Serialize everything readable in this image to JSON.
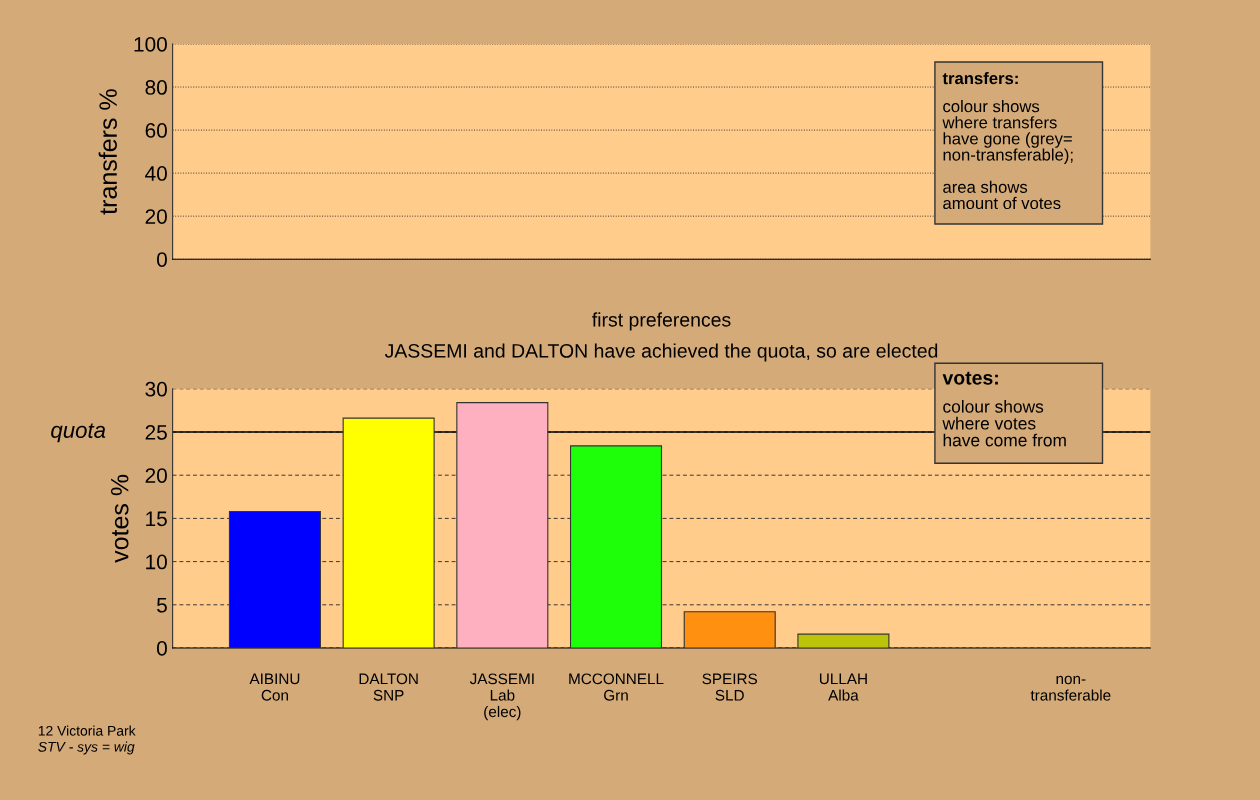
{
  "chart_data": [
    {
      "type": "bar",
      "ylabel": "transfers %",
      "values": [
        null,
        null,
        null,
        null,
        null,
        null,
        null,
        null
      ],
      "ylim": [
        0,
        100
      ],
      "yticks": [
        0,
        20,
        40,
        60,
        80,
        100
      ],
      "grid": "y",
      "tick_labels": "y",
      "annotations": [
        "transfers:",
        "colour shows\nwhere transfers\nhave gone (grey=\nnon-transferable);\n\narea shows\namount of votes"
      ]
    },
    {
      "type": "bar",
      "title": "first preferences",
      "subtitle": "JASSEMI and DALTON have achieved the quota, so are elected",
      "ylabel": "votes %",
      "categories": [
        "AIBINU\nCon",
        "DALTON\nSNP",
        "JASSEMI\nLab\n(elec)",
        "MCCONNELL\nGrn",
        "SPEIRS\nSLD",
        "ULLAH\nAlba",
        null,
        "non-\ntransferable"
      ],
      "values": [
        15.8,
        26.6,
        28.4,
        23.4,
        4.2,
        1.6,
        null,
        null
      ],
      "colors": [
        "#0000ff",
        "#ffff00",
        "#ffb0c0",
        "#1eff0a",
        "#ff9010",
        "#bcc40a",
        "#808080",
        "#808080"
      ],
      "ylim": [
        0,
        30
      ],
      "yticks": [
        0,
        5,
        10,
        15,
        20,
        {
          "value": 25,
          "label": "25"
        },
        30
      ],
      "grid": "y",
      "ref_lines": [
        {
          "axis": "y",
          "value": 25,
          "label": "quota",
          "color": "#000000",
          "line_style": "solid"
        }
      ],
      "annotations": [
        "votes:",
        "colour shows\nwhere votes\nhave come from",
        "12 Victoria Park",
        "STV - sys = wig"
      ]
    }
  ]
}
